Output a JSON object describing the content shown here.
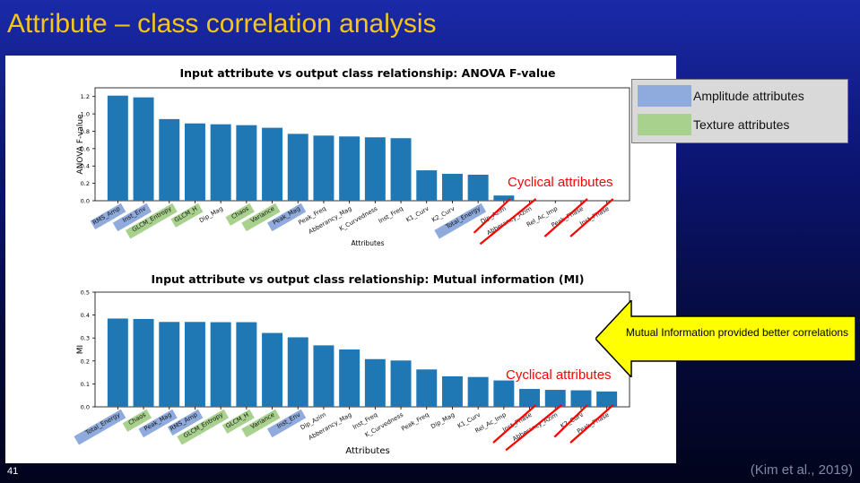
{
  "slide": {
    "title": "Attribute – class correlation analysis",
    "page_number": "41",
    "citation": "(Kim et al., 2019)"
  },
  "legend": {
    "items": [
      {
        "label": "Amplitude attributes",
        "color": "#8faadc"
      },
      {
        "label": "Texture attributes",
        "color": "#a9d18e"
      }
    ]
  },
  "annotations": {
    "cyclical_top": "Cyclical attributes",
    "cyclical_bottom": "Cyclical attributes",
    "callout_text": "Mutual Information provided better correlations"
  },
  "colors": {
    "bar": "#1f77b4",
    "amplitude_highlight": "#8faadc",
    "texture_highlight": "#a9d18e",
    "annotation_red": "#ff0000",
    "callout_yellow": "#ffff00",
    "title_gold": "#f5c518"
  },
  "chart_data": [
    {
      "type": "bar",
      "title": "Input attribute vs output class relationship: ANOVA F-value",
      "xlabel": "Attributes",
      "ylabel": "ANOVA F-value",
      "ylim": [
        0,
        1.3
      ],
      "yticks": [
        "0.0",
        "0.2",
        "0.4",
        "0.6",
        "0.8",
        "1.0",
        "1.2"
      ],
      "ytick_values": [
        0,
        0.2,
        0.4,
        0.6,
        0.8,
        1.0,
        1.2
      ],
      "grid": false,
      "categories": [
        "RMS_Amp",
        "Inst_Env",
        "GLCM_Entropy",
        "GLCM_H",
        "Dip_Mag",
        "Chaos",
        "Variance",
        "Peak_Mag",
        "Peak_Freq",
        "Abberancy_Mag",
        "K_Curvedness",
        "Inst_Freq",
        "K1_Curv",
        "K2_Curv",
        "Total_Energy",
        "Dip_Azim",
        "Abberancy_Azim",
        "Rel_Ac_Imp",
        "Peak_Phase",
        "Inst_Phase"
      ],
      "values": [
        1.21,
        1.19,
        0.94,
        0.89,
        0.88,
        0.87,
        0.84,
        0.77,
        0.75,
        0.74,
        0.73,
        0.72,
        0.35,
        0.31,
        0.3,
        0.06,
        0.0,
        0.0,
        0.0,
        0.0
      ],
      "highlight": [
        "amplitude",
        "amplitude",
        "texture",
        "texture",
        "none",
        "texture",
        "texture",
        "amplitude",
        "none",
        "none",
        "none",
        "none",
        "none",
        "none",
        "amplitude",
        "cyclical",
        "cyclical",
        "none",
        "cyclical",
        "cyclical"
      ]
    },
    {
      "type": "bar",
      "title": "Input attribute vs output class relationship: Mutual information (MI)",
      "xlabel": "Attributes",
      "ylabel": "MI",
      "ylim": [
        0,
        0.5
      ],
      "yticks": [
        "0.0",
        "0.1",
        "0.2",
        "0.3",
        "0.4",
        "0.5"
      ],
      "ytick_values": [
        0,
        0.1,
        0.2,
        0.3,
        0.4,
        0.5
      ],
      "grid": false,
      "categories": [
        "Total_Energy",
        "Chaos",
        "Peak_Mag",
        "RMS_Amp",
        "GLCM_Entropy",
        "GLCM_H",
        "Variance",
        "Inst_Env",
        "Dip_Azim",
        "Abberancy_Mag",
        "Inst_Freq",
        "K_Curvedness",
        "Peak_Freq",
        "Dip_Mag",
        "K1_Curv",
        "Rel_Ac_Imp",
        "Inst_Phase",
        "Abberancy_Azim",
        "K2_Curv",
        "Peak_Phase"
      ],
      "values": [
        0.385,
        0.383,
        0.37,
        0.37,
        0.369,
        0.369,
        0.322,
        0.303,
        0.268,
        0.25,
        0.208,
        0.202,
        0.163,
        0.133,
        0.13,
        0.115,
        0.078,
        0.074,
        0.072,
        0.067
      ],
      "highlight": [
        "amplitude",
        "texture",
        "amplitude",
        "amplitude",
        "texture",
        "texture",
        "texture",
        "amplitude",
        "none",
        "none",
        "none",
        "none",
        "none",
        "none",
        "none",
        "none",
        "cyclical",
        "cyclical",
        "cyclical",
        "cyclical"
      ]
    }
  ]
}
